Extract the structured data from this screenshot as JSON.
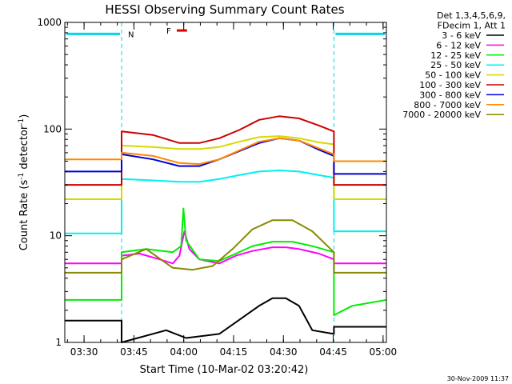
{
  "chart_data": {
    "type": "line",
    "title": "HESSI Observing Summary Count Rates",
    "xlabel": "Start Time (10-Mar-02 03:20:42)",
    "ylabel_main": "Count Rate (s",
    "ylabel_sup1": "-1",
    "ylabel_mid": " detector",
    "ylabel_sup2": "-1",
    "ylabel_end": ")",
    "y_scale": "log",
    "ylim": [
      1,
      1000
    ],
    "xlim_minutes": [
      3.5,
      100.3
    ],
    "x_ticks": [
      {
        "label": "03:30",
        "m": 9.3
      },
      {
        "label": "03:45",
        "m": 24.3
      },
      {
        "label": "04:00",
        "m": 39.3
      },
      {
        "label": "04:15",
        "m": 54.3
      },
      {
        "label": "04:30",
        "m": 69.3
      },
      {
        "label": "04:45",
        "m": 84.3
      },
      {
        "label": "05:00",
        "m": 99.3
      }
    ],
    "y_ticks": [
      {
        "label": "1",
        "v": 1
      },
      {
        "label": "10",
        "v": 10
      },
      {
        "label": "100",
        "v": 100
      },
      {
        "label": "1000",
        "v": 1000
      }
    ],
    "legend_header": [
      "Det 1,3,4,5,6,9,",
      "FDecim 1, Att 1"
    ],
    "legend_position": "right",
    "annotations": [
      {
        "text": "N",
        "color": "#00d8e8"
      },
      {
        "text": "F",
        "color": "#e00000"
      }
    ],
    "footer_date": "30-Nov-2009 11:37",
    "night_intervals": [
      [
        3.5,
        20.6
      ],
      [
        84.5,
        100.3
      ]
    ],
    "night_level": 780,
    "flare_interval": [
      37.2,
      40.3
    ],
    "flare_level": 840,
    "series": [
      {
        "name": "3 - 6 keV",
        "color": "#000000",
        "points": [
          [
            3.5,
            1.6
          ],
          [
            20.6,
            1.6
          ],
          [
            20.6,
            1.0
          ],
          [
            34,
            1.3
          ],
          [
            40,
            1.1
          ],
          [
            50,
            1.2
          ],
          [
            62,
            2.2
          ],
          [
            66,
            2.6
          ],
          [
            70,
            2.6
          ],
          [
            74,
            2.2
          ],
          [
            78,
            1.3
          ],
          [
            84.5,
            1.2
          ],
          [
            84.5,
            1.4
          ],
          [
            100.3,
            1.4
          ]
        ]
      },
      {
        "name": "6 - 12 keV",
        "color": "#ff00ff",
        "points": [
          [
            3.5,
            5.5
          ],
          [
            20.6,
            5.5
          ],
          [
            20.6,
            6.5
          ],
          [
            26,
            6.8
          ],
          [
            32,
            6.0
          ],
          [
            36,
            5.5
          ],
          [
            38,
            6.5
          ],
          [
            39.5,
            11
          ],
          [
            41,
            7.5
          ],
          [
            44,
            6.0
          ],
          [
            50,
            5.5
          ],
          [
            55,
            6.5
          ],
          [
            60,
            7.2
          ],
          [
            66,
            7.8
          ],
          [
            70,
            7.8
          ],
          [
            74,
            7.5
          ],
          [
            80,
            6.8
          ],
          [
            84.5,
            6.0
          ],
          [
            84.5,
            5.5
          ],
          [
            100.3,
            5.5
          ]
        ]
      },
      {
        "name": "12 - 25 keV",
        "color": "#00ee00",
        "points": [
          [
            3.5,
            2.5
          ],
          [
            20.6,
            2.5
          ],
          [
            20.6,
            7.0
          ],
          [
            28,
            7.5
          ],
          [
            36,
            7.0
          ],
          [
            38.5,
            8.0
          ],
          [
            39.2,
            18
          ],
          [
            40,
            9.0
          ],
          [
            44,
            6.0
          ],
          [
            50,
            5.8
          ],
          [
            55,
            6.8
          ],
          [
            60,
            8.0
          ],
          [
            66,
            8.8
          ],
          [
            72,
            8.8
          ],
          [
            78,
            8.0
          ],
          [
            84.5,
            7.0
          ],
          [
            84.5,
            1.8
          ],
          [
            90,
            2.2
          ],
          [
            100.3,
            2.5
          ]
        ]
      },
      {
        "name": "25 - 50 keV",
        "color": "#00f0f0",
        "points": [
          [
            3.5,
            10.5
          ],
          [
            20.6,
            10.5
          ],
          [
            20.6,
            34
          ],
          [
            30,
            33
          ],
          [
            38,
            32
          ],
          [
            44,
            32
          ],
          [
            50,
            34
          ],
          [
            56,
            37
          ],
          [
            62,
            40
          ],
          [
            68,
            41
          ],
          [
            74,
            40
          ],
          [
            80,
            37
          ],
          [
            84.5,
            35
          ],
          [
            84.5,
            11
          ],
          [
            100.3,
            11
          ]
        ]
      },
      {
        "name": "50 - 100 keV",
        "color": "#d8d800",
        "points": [
          [
            3.5,
            22
          ],
          [
            20.6,
            22
          ],
          [
            20.6,
            70
          ],
          [
            30,
            68
          ],
          [
            38,
            65
          ],
          [
            44,
            65
          ],
          [
            50,
            68
          ],
          [
            56,
            76
          ],
          [
            62,
            84
          ],
          [
            68,
            86
          ],
          [
            74,
            82
          ],
          [
            80,
            75
          ],
          [
            84.5,
            72
          ],
          [
            84.5,
            22
          ],
          [
            100.3,
            22
          ]
        ]
      },
      {
        "name": "100 - 300 keV",
        "color": "#cc0000",
        "points": [
          [
            3.5,
            30
          ],
          [
            20.6,
            30
          ],
          [
            20.6,
            95
          ],
          [
            30,
            88
          ],
          [
            38,
            74
          ],
          [
            44,
            74
          ],
          [
            50,
            82
          ],
          [
            56,
            98
          ],
          [
            62,
            122
          ],
          [
            68,
            132
          ],
          [
            74,
            126
          ],
          [
            80,
            108
          ],
          [
            84.5,
            95
          ],
          [
            84.5,
            30
          ],
          [
            100.3,
            30
          ]
        ]
      },
      {
        "name": "300 - 800 keV",
        "color": "#0000dd",
        "points": [
          [
            3.5,
            40
          ],
          [
            20.6,
            40
          ],
          [
            20.6,
            58
          ],
          [
            30,
            52
          ],
          [
            38,
            45
          ],
          [
            44,
            45
          ],
          [
            50,
            52
          ],
          [
            56,
            62
          ],
          [
            62,
            74
          ],
          [
            68,
            82
          ],
          [
            74,
            78
          ],
          [
            80,
            64
          ],
          [
            84.5,
            56
          ],
          [
            84.5,
            38
          ],
          [
            100.3,
            38
          ]
        ]
      },
      {
        "name": "800 - 7000 keV",
        "color": "#ff8800",
        "points": [
          [
            3.5,
            52
          ],
          [
            20.6,
            52
          ],
          [
            20.6,
            60
          ],
          [
            30,
            56
          ],
          [
            38,
            48
          ],
          [
            44,
            47
          ],
          [
            50,
            52
          ],
          [
            56,
            63
          ],
          [
            62,
            76
          ],
          [
            68,
            82
          ],
          [
            74,
            78
          ],
          [
            80,
            66
          ],
          [
            84.5,
            58
          ],
          [
            84.5,
            50
          ],
          [
            100.3,
            50
          ]
        ]
      },
      {
        "name": "7000 - 20000 keV",
        "color": "#888800",
        "points": [
          [
            3.5,
            4.5
          ],
          [
            20.6,
            4.5
          ],
          [
            20.6,
            6.0
          ],
          [
            28,
            7.5
          ],
          [
            36,
            5.0
          ],
          [
            42,
            4.8
          ],
          [
            48,
            5.2
          ],
          [
            54,
            7.5
          ],
          [
            60,
            11.5
          ],
          [
            66,
            14
          ],
          [
            72,
            14
          ],
          [
            78,
            11
          ],
          [
            84.5,
            7.0
          ],
          [
            84.5,
            4.5
          ],
          [
            100.3,
            4.5
          ]
        ]
      }
    ]
  }
}
